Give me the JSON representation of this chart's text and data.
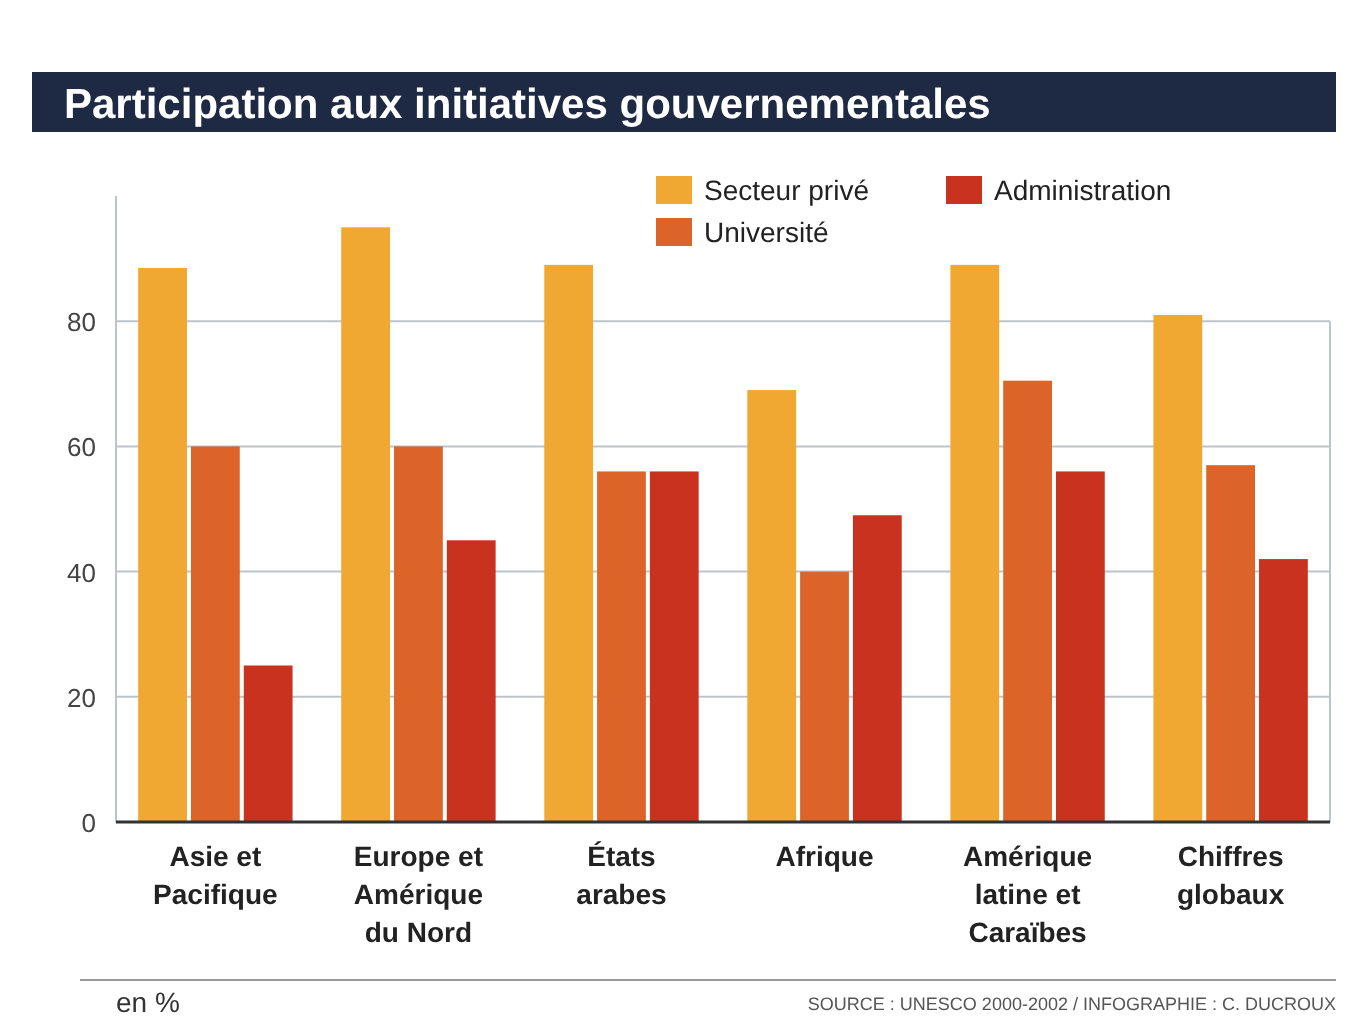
{
  "chart_data": {
    "type": "bar",
    "title": "Participation aux initiatives gouvernementales",
    "categories": [
      "Asie et\nPacifique",
      "Europe et\nAmérique\ndu Nord",
      "États\narabes",
      "Afrique",
      "Amérique\nlatine et\nCaraïbes",
      "Chiffres\nglobaux"
    ],
    "series": [
      {
        "name": "Secteur privé",
        "color": "#f0a832",
        "values": [
          88.5,
          95,
          89,
          69,
          89,
          81
        ]
      },
      {
        "name": "Université",
        "color": "#dc6428",
        "values": [
          60,
          60,
          56,
          40,
          70.5,
          57
        ]
      },
      {
        "name": "Administration",
        "color": "#c8321e",
        "values": [
          25,
          45,
          56,
          49,
          56,
          42
        ]
      }
    ],
    "ylim": [
      0,
      100
    ],
    "yticks": [
      0,
      20,
      40,
      60,
      80
    ],
    "grid": "y",
    "legend": "top right",
    "annotations": [
      "en %",
      "SOURCE : UNESCO 2000-2002 / INFOGRAPHIE : C. DUCROUX"
    ]
  }
}
